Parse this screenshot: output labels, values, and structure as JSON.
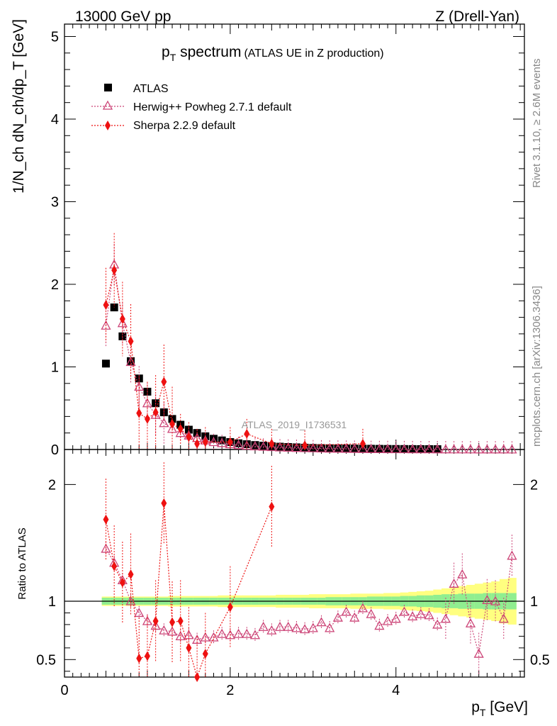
{
  "header": {
    "energy": "13000 GeV pp",
    "process": "Z (Drell-Yan)"
  },
  "side_labels": {
    "rivet": "Rivet 3.1.10, ≥ 2.6M events",
    "source": "mcplots.cern.ch [arXiv:1306.3436]"
  },
  "colors": {
    "atlas": "#000000",
    "herwig": "#cc4477",
    "sherpa": "#ee1111",
    "band_inner": "#90ee90",
    "band_outer": "#ffff80"
  },
  "chart_data": [
    {
      "type": "scatter",
      "panel": "main",
      "title_main": "p",
      "title_sub": "T",
      "title_rest": " spectrum",
      "title_note": "(ATLAS UE in Z production)",
      "analysis_id": "ATLAS_2019_I1736531",
      "ylabel": "1/N_ch dN_ch/dp_T [GeV]",
      "xlim": [
        0,
        5.55
      ],
      "ylim": [
        0,
        5.15
      ],
      "yticks": [
        0,
        1,
        2,
        3,
        4,
        5
      ],
      "legend_position": "top-left",
      "series": [
        {
          "name": "ATLAS",
          "marker": "square",
          "x": [
            0.5,
            0.6,
            0.7,
            0.8,
            0.9,
            1.0,
            1.1,
            1.2,
            1.3,
            1.4,
            1.5,
            1.6,
            1.7,
            1.8,
            1.9,
            2.0,
            2.1,
            2.2,
            2.3,
            2.4,
            2.5,
            2.6,
            2.7,
            2.8,
            2.9,
            3.0,
            3.1,
            3.2,
            3.3,
            3.4,
            3.5,
            3.6,
            3.7,
            3.8,
            3.9,
            4.0,
            4.1,
            4.2,
            4.3,
            4.4,
            4.5,
            4.6,
            4.7,
            4.8,
            4.9,
            5.0,
            5.1,
            5.2,
            5.3,
            5.4
          ],
          "y": [
            1.04,
            1.72,
            1.37,
            1.07,
            0.86,
            0.7,
            0.56,
            0.45,
            0.37,
            0.3,
            0.24,
            0.2,
            0.16,
            0.13,
            0.11,
            0.09,
            0.075,
            0.064,
            0.054,
            0.046,
            0.04,
            0.034,
            0.03,
            0.026,
            0.022,
            0.019,
            0.017,
            0.015,
            0.013,
            0.012,
            0.011,
            0.01,
            0.009,
            0.008,
            0.007,
            0.0065,
            0.006,
            0.0055,
            0.005,
            0.0045,
            0.004,
            0.0037,
            0.0034,
            0.0031,
            0.0028,
            0.0026,
            0.0024,
            0.0022,
            0.002,
            0.0018
          ]
        },
        {
          "name": "Herwig++ Powheg 2.7.1 default",
          "marker": "triangle-open",
          "x": [
            0.5,
            0.6,
            0.7,
            0.8,
            0.9,
            1.0,
            1.1,
            1.2,
            1.3,
            1.4,
            1.5,
            1.6,
            1.7,
            1.8,
            1.9,
            2.0,
            2.1,
            2.2,
            2.3,
            2.4,
            2.5,
            2.6,
            2.7,
            2.8,
            2.9,
            3.0,
            3.1,
            3.2,
            3.3,
            3.4,
            3.5,
            3.6,
            3.7,
            3.8,
            3.9,
            4.0,
            4.1,
            4.2,
            4.3,
            4.4,
            4.5,
            4.6,
            4.7,
            4.8,
            4.9,
            5.0,
            5.1,
            5.2,
            5.3,
            5.4
          ],
          "y": [
            1.5,
            2.24,
            1.53,
            1.06,
            0.76,
            0.56,
            0.42,
            0.32,
            0.25,
            0.2,
            0.17,
            0.14,
            0.11,
            0.09,
            0.078,
            0.065,
            0.054,
            0.046,
            0.039,
            0.035,
            0.03,
            0.026,
            0.023,
            0.02,
            0.017,
            0.015,
            0.013,
            0.011,
            0.01,
            0.009,
            0.008,
            0.007,
            0.006,
            0.0055,
            0.005,
            0.0045,
            0.004,
            0.0037,
            0.0034,
            0.003,
            0.0028,
            0.0026,
            0.0024,
            0.0022,
            0.002,
            0.0018,
            0.0016,
            0.0015,
            0.0014,
            0.0013
          ]
        },
        {
          "name": "Sherpa 2.2.9 default",
          "marker": "diamond",
          "x": [
            0.5,
            0.6,
            0.7,
            0.8,
            0.9,
            1.0,
            1.1,
            1.2,
            1.3,
            1.4,
            1.5,
            1.6,
            1.7,
            2.0,
            2.2,
            2.5,
            2.9,
            3.6
          ],
          "y": [
            1.75,
            2.17,
            1.58,
            1.31,
            0.44,
            0.37,
            0.45,
            0.82,
            0.31,
            0.25,
            0.15,
            0.07,
            0.09,
            0.09,
            0.19,
            0.07,
            0.05,
            0.07
          ]
        }
      ]
    },
    {
      "type": "scatter",
      "panel": "ratio",
      "ylabel": "Ratio to ATLAS",
      "xlabel_main": "p",
      "xlabel_sub": "T",
      "xlabel_rest": " [GeV]",
      "xlim": [
        0,
        5.55
      ],
      "ylim": [
        0.35,
        2.3
      ],
      "yticks": [
        0.5,
        1,
        2
      ],
      "xticks": [
        0,
        2,
        4
      ],
      "reference": 1,
      "band_inner_halfwidth": [
        0.03,
        0.03,
        0.03,
        0.03,
        0.03,
        0.03,
        0.03,
        0.03,
        0.03,
        0.03,
        0.03,
        0.03,
        0.03,
        0.03,
        0.03,
        0.03,
        0.03,
        0.03,
        0.03,
        0.03,
        0.03,
        0.03,
        0.03,
        0.03,
        0.03,
        0.03,
        0.03,
        0.035,
        0.035,
        0.035,
        0.035,
        0.035,
        0.04,
        0.04,
        0.04,
        0.04,
        0.045,
        0.045,
        0.05,
        0.05,
        0.055,
        0.06,
        0.06,
        0.065,
        0.065,
        0.065,
        0.07,
        0.07,
        0.07,
        0.07
      ],
      "band_outer_halfwidth": [
        0.04,
        0.04,
        0.04,
        0.04,
        0.04,
        0.04,
        0.04,
        0.04,
        0.045,
        0.045,
        0.045,
        0.045,
        0.045,
        0.045,
        0.05,
        0.05,
        0.05,
        0.05,
        0.05,
        0.05,
        0.05,
        0.055,
        0.055,
        0.055,
        0.055,
        0.06,
        0.06,
        0.06,
        0.06,
        0.06,
        0.065,
        0.065,
        0.065,
        0.065,
        0.07,
        0.07,
        0.075,
        0.08,
        0.085,
        0.09,
        0.1,
        0.11,
        0.12,
        0.13,
        0.14,
        0.15,
        0.16,
        0.17,
        0.19,
        0.2
      ],
      "series": [
        {
          "name": "Herwig++ Powheg 2.7.1 default",
          "marker": "triangle-open",
          "x": [
            0.5,
            0.6,
            0.7,
            0.8,
            0.9,
            1.0,
            1.1,
            1.2,
            1.3,
            1.4,
            1.5,
            1.6,
            1.7,
            1.8,
            1.9,
            2.0,
            2.1,
            2.2,
            2.3,
            2.4,
            2.5,
            2.6,
            2.7,
            2.8,
            2.9,
            3.0,
            3.1,
            3.2,
            3.3,
            3.4,
            3.5,
            3.6,
            3.7,
            3.8,
            3.9,
            4.0,
            4.1,
            4.2,
            4.3,
            4.4,
            4.5,
            4.6,
            4.7,
            4.8,
            4.9,
            5.0,
            5.1,
            5.2,
            5.3,
            5.4
          ],
          "y": [
            1.45,
            1.33,
            1.18,
            1.0,
            0.9,
            0.83,
            0.79,
            0.75,
            0.74,
            0.7,
            0.71,
            0.67,
            0.69,
            0.69,
            0.72,
            0.71,
            0.72,
            0.72,
            0.71,
            0.78,
            0.75,
            0.78,
            0.78,
            0.77,
            0.76,
            0.77,
            0.82,
            0.77,
            0.86,
            0.91,
            0.86,
            0.94,
            0.89,
            0.79,
            0.83,
            0.85,
            0.91,
            0.87,
            0.89,
            0.88,
            0.8,
            0.85,
            1.15,
            1.23,
            0.81,
            0.55,
            1.01,
            1.0,
            0.85,
            0.95
          ],
          "y_last": 1.39
        },
        {
          "name": "Sherpa 2.2.9 default",
          "marker": "diamond",
          "x": [
            0.5,
            0.6,
            0.7,
            0.8,
            0.9,
            1.0,
            1.1,
            1.2,
            1.3,
            1.4,
            1.5,
            1.6,
            1.7,
            2.0,
            2.5
          ],
          "y": [
            1.7,
            1.3,
            1.16,
            1.23,
            0.51,
            0.53,
            0.83,
            1.84,
            0.82,
            0.83,
            0.6,
            0.35,
            0.55,
            0.95,
            1.81
          ]
        }
      ]
    }
  ]
}
